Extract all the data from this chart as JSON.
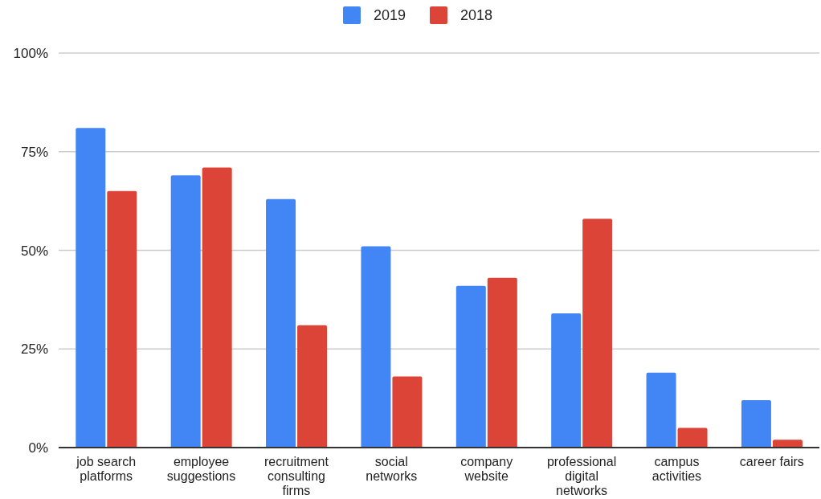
{
  "chart_data": {
    "type": "bar",
    "categories": [
      "job search platforms",
      "employee suggestions",
      "recruitment consulting firms",
      "social networks",
      "company website",
      "professional digital networks",
      "campus activities",
      "career fairs"
    ],
    "series": [
      {
        "name": "2019",
        "color": "#4285f4",
        "values": [
          81,
          69,
          63,
          51,
          41,
          34,
          19,
          12
        ]
      },
      {
        "name": "2018",
        "color": "#db4437",
        "values": [
          65,
          71,
          31,
          18,
          43,
          58,
          5,
          2
        ]
      }
    ],
    "ylim": [
      0,
      100
    ],
    "yticks": [
      {
        "value": 0,
        "label": "0%"
      },
      {
        "value": 25,
        "label": "25%"
      },
      {
        "value": 50,
        "label": "50%"
      },
      {
        "value": 75,
        "label": "75%"
      },
      {
        "value": 100,
        "label": "100%"
      }
    ],
    "grid": "y",
    "legend": "top"
  }
}
